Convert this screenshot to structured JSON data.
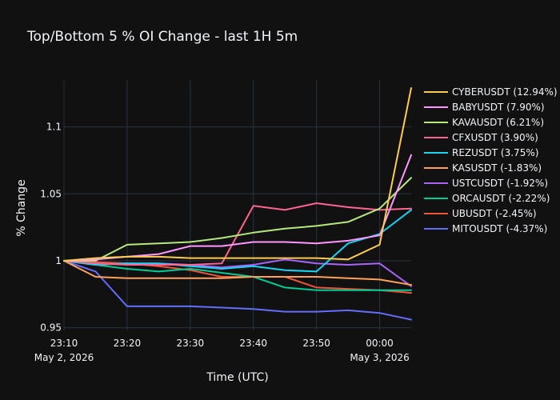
{
  "chart_data": {
    "type": "line",
    "title": "Top/Bottom 5 % OI Change - last 1H 5m",
    "xlabel": "Time (UTC)",
    "ylabel": "% Change",
    "x": [
      "23:10",
      "23:15",
      "23:20",
      "23:25",
      "23:30",
      "23:35",
      "23:40",
      "23:45",
      "23:50",
      "23:55",
      "00:00",
      "00:05"
    ],
    "x_ticks": [
      {
        "value": "23:10",
        "label": "23:10",
        "sublabel": "May 2, 2026"
      },
      {
        "value": "23:20",
        "label": "23:20",
        "sublabel": ""
      },
      {
        "value": "23:30",
        "label": "23:30",
        "sublabel": ""
      },
      {
        "value": "23:40",
        "label": "23:40",
        "sublabel": ""
      },
      {
        "value": "23:50",
        "label": "23:50",
        "sublabel": ""
      },
      {
        "value": "00:00",
        "label": "00:00",
        "sublabel": "May 3, 2026"
      }
    ],
    "y_ticks": [
      {
        "value": 0.95,
        "label": "0.95"
      },
      {
        "value": 1.0,
        "label": "1"
      },
      {
        "value": 1.05,
        "label": "1.05"
      },
      {
        "value": 1.1,
        "label": "1.1"
      }
    ],
    "ylim": [
      0.948,
      1.135
    ],
    "grid": true,
    "legend_position": "right",
    "series": [
      {
        "name": "CYBERUSDT (12.94%)",
        "color": "#fecb52",
        "values": [
          1.0,
          1.002,
          1.003,
          1.003,
          1.002,
          1.002,
          1.002,
          1.002,
          1.002,
          1.001,
          1.012,
          1.129
        ]
      },
      {
        "name": "BABYUSDT (7.90%)",
        "color": "#ff97ff",
        "values": [
          1.0,
          1.001,
          1.003,
          1.005,
          1.011,
          1.011,
          1.014,
          1.014,
          1.013,
          1.015,
          1.019,
          1.079
        ]
      },
      {
        "name": "KAVAUSDT (6.21%)",
        "color": "#b6e880",
        "values": [
          1.0,
          1.0,
          1.012,
          1.013,
          1.014,
          1.017,
          1.021,
          1.024,
          1.026,
          1.029,
          1.039,
          1.062
        ]
      },
      {
        "name": "CFXUSDT (3.90%)",
        "color": "#ff6692",
        "values": [
          1.0,
          0.998,
          0.997,
          0.997,
          0.997,
          0.998,
          1.041,
          1.038,
          1.043,
          1.04,
          1.038,
          1.039
        ]
      },
      {
        "name": "REZUSDT (3.75%)",
        "color": "#19d3f3",
        "values": [
          1.0,
          0.997,
          0.998,
          0.998,
          0.996,
          0.994,
          0.996,
          0.993,
          0.992,
          1.013,
          1.02,
          1.038
        ]
      },
      {
        "name": "KASUSDT (-1.83%)",
        "color": "#ffa15a",
        "values": [
          1.0,
          0.988,
          0.987,
          0.987,
          0.987,
          0.987,
          0.988,
          0.988,
          0.988,
          0.987,
          0.986,
          0.982
        ]
      },
      {
        "name": "USTCUSDT (-1.92%)",
        "color": "#ab63fa",
        "values": [
          1.0,
          0.997,
          0.998,
          0.998,
          0.997,
          0.995,
          0.997,
          1.001,
          0.998,
          0.997,
          0.998,
          0.981
        ]
      },
      {
        "name": "ORCAUSDT (-2.22%)",
        "color": "#00cc96",
        "values": [
          1.0,
          0.997,
          0.994,
          0.992,
          0.994,
          0.991,
          0.988,
          0.98,
          0.978,
          0.978,
          0.978,
          0.978
        ]
      },
      {
        "name": "UBUSDT (-2.45%)",
        "color": "#ef553b",
        "values": [
          1.0,
          0.999,
          0.998,
          0.996,
          0.993,
          0.988,
          0.988,
          0.988,
          0.98,
          0.979,
          0.978,
          0.976
        ]
      },
      {
        "name": "MITOUSDT (-4.37%)",
        "color": "#636efa",
        "values": [
          1.0,
          0.992,
          0.966,
          0.966,
          0.966,
          0.965,
          0.964,
          0.962,
          0.962,
          0.963,
          0.961,
          0.956
        ]
      }
    ]
  }
}
